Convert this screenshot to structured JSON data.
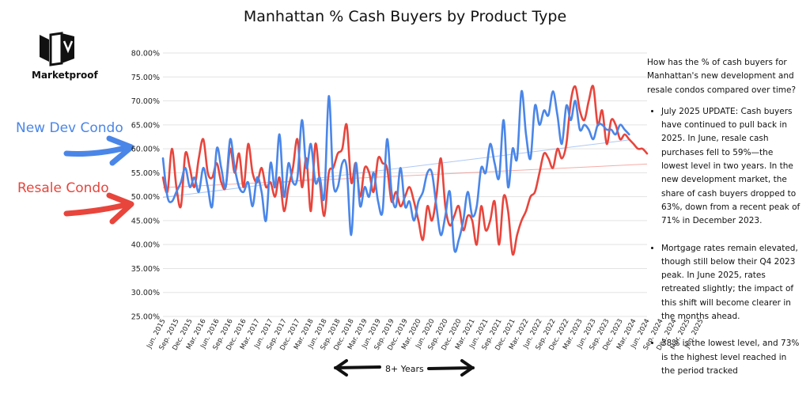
{
  "logo": {
    "text": "Marketproof",
    "icon": "marketproof-logo"
  },
  "annotations": {
    "new_dev_label": "New Dev Condo",
    "resale_label": "Resale Condo",
    "years_label": "8+ Years"
  },
  "commentary": {
    "question": "How has the % of cash buyers for Manhattan's new development and resale condos compared over time?",
    "bullets": [
      "July 2025 UPDATE: Cash buyers have continued to pull back in 2025. In June, resale cash purchases fell to 59%—the lowest level in two years. In the new development market, the share of cash buyers dropped to 63%, down from a recent peak of 71% in December 2023.",
      "Mortgage rates remain elevated, though still below their Q4 2023 peak. In June 2025, rates retreated slightly; the impact of this shift will become clearer in the months ahead.",
      "38% is the lowest level, and 73% is the highest level reached in the period tracked"
    ]
  },
  "colors": {
    "new_dev": "#4a86e8",
    "resale": "#e8453c",
    "grid": "#e3e3e3"
  },
  "chart_data": {
    "type": "line",
    "title": "Manhattan % Cash Buyers by Product Type",
    "ylim": [
      25,
      80
    ],
    "y_ticks": [
      "25.00%",
      "30.00%",
      "35.00%",
      "40.00%",
      "45.00%",
      "50.00%",
      "55.00%",
      "60.00%",
      "65.00%",
      "70.00%",
      "75.00%",
      "80.00%"
    ],
    "x_start": "2015-06",
    "x_tick_labels": [
      "Jun. 2015",
      "Sep. 2015",
      "Dec. 2015",
      "Mar. 2016",
      "Jun. 2016",
      "Sep. 2016",
      "Dec. 2016",
      "Mar. 2017",
      "Jun. 2017",
      "Sep. 2017",
      "Dec. 2017",
      "Mar. 2018",
      "Jun. 2018",
      "Sep. 2018",
      "Dec. 2018",
      "Mar. 2019",
      "Jun. 2019",
      "Sep. 2019",
      "Dec. 2019",
      "Mar. 2020",
      "Jun. 2020",
      "Sep. 2020",
      "Dec. 2020",
      "Mar. 2021",
      "Jun. 2021",
      "Sep. 2021",
      "Dec. 2021",
      "Mar. 2022",
      "Jun. 2022",
      "Sep. 2022",
      "Dec. 2022",
      "Mar. 2023",
      "Jun. 2023",
      "Sep. 2023",
      "Dec. 2023",
      "Mar. 2024",
      "Jun. 2024",
      "Sep. 2024",
      "Dec. 2024",
      "Mar. 2025",
      "Jun. 2025"
    ],
    "grid": true,
    "trendlines": true,
    "series": [
      {
        "key": "resale",
        "values": [
          54,
          51,
          60,
          52,
          48,
          59,
          56,
          52,
          58,
          62,
          55,
          54,
          57,
          53,
          52,
          60,
          55,
          59,
          52,
          61,
          55,
          53,
          56,
          52,
          53,
          50,
          54,
          47,
          52,
          56,
          62,
          52,
          58,
          47,
          61,
          53,
          46,
          55,
          56,
          59,
          60,
          65,
          53,
          57,
          50,
          56,
          55,
          51,
          58,
          57,
          56,
          49,
          51,
          48,
          50,
          52,
          49,
          45,
          41,
          48,
          45,
          50,
          58,
          48,
          44,
          46,
          48,
          43,
          46,
          45,
          40,
          48,
          43,
          45,
          49,
          40,
          50,
          47,
          38,
          42,
          45,
          47,
          50,
          51,
          55,
          59,
          58,
          56,
          60,
          58,
          61,
          70,
          73,
          68,
          66,
          70,
          73,
          65,
          68,
          61,
          66,
          65,
          62,
          63,
          62,
          61,
          60,
          60,
          59
        ]
      },
      {
        "key": "new_dev",
        "values": [
          58,
          50,
          49,
          51,
          53,
          56,
          52,
          54,
          51,
          56,
          52,
          48,
          60,
          56,
          52,
          62,
          56,
          52,
          51,
          53,
          48,
          54,
          51,
          45,
          57,
          52,
          63,
          50,
          57,
          53,
          54,
          66,
          56,
          61,
          53,
          54,
          50,
          71,
          53,
          52,
          57,
          56,
          42,
          57,
          48,
          52,
          50,
          55,
          49,
          47,
          62,
          51,
          48,
          56,
          48,
          49,
          45,
          49,
          51,
          55,
          55,
          48,
          42,
          46,
          51,
          39,
          41,
          45,
          51,
          46,
          48,
          56,
          55,
          61,
          57,
          54,
          66,
          52,
          60,
          58,
          72,
          63,
          58,
          69,
          65,
          68,
          67,
          72,
          67,
          61,
          69,
          66,
          70,
          64,
          65,
          64,
          62,
          65,
          65,
          64,
          64,
          63,
          65,
          64,
          63
        ]
      }
    ]
  }
}
